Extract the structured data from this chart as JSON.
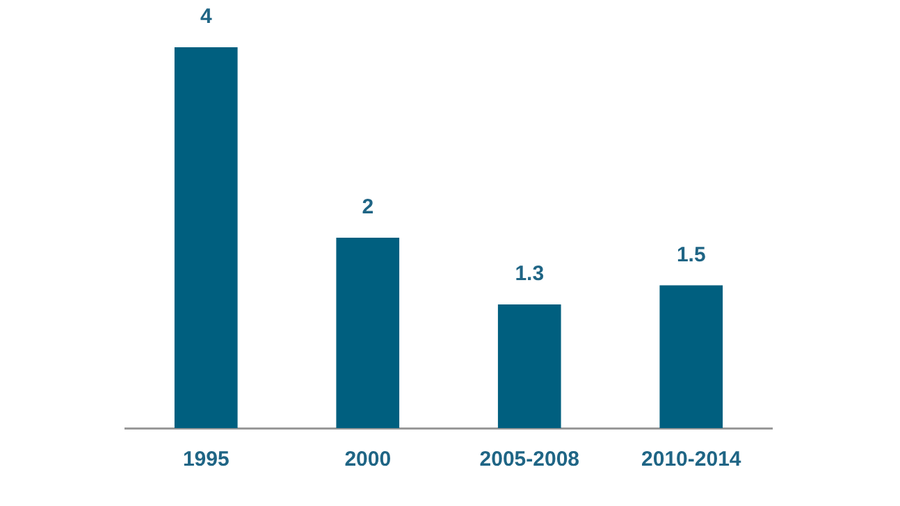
{
  "chart_data": {
    "type": "bar",
    "categories": [
      "1995",
      "2000",
      "2005-2008",
      "2010-2014"
    ],
    "values": [
      4,
      2,
      1.3,
      1.5
    ],
    "color": "#005f7f",
    "data_labels": true,
    "grid": false
  }
}
